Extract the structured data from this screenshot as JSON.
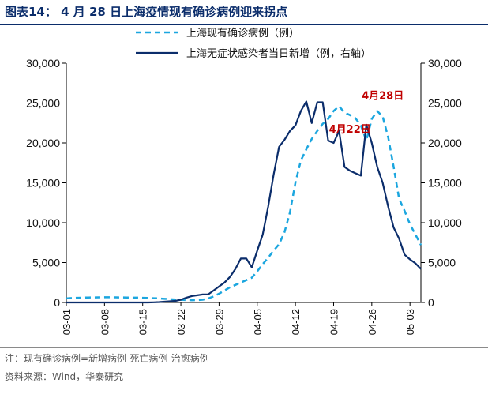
{
  "title": "图表14：  4 月 28 日上海疫情现有确诊病例迎来拐点",
  "footnote": "注：现有确诊病例=新增病例-死亡病例-治愈病例",
  "source": "资料来源：Wind，华泰研究",
  "colors": {
    "dashed": "#1ba6df",
    "solid": "#0b2d6b",
    "annotation": "#c00000",
    "axis": "#000000"
  },
  "chart_data": {
    "type": "line",
    "start_date": "2022-03-01",
    "x_tick_labels": [
      "03-01",
      "03-08",
      "03-15",
      "03-22",
      "03-29",
      "04-05",
      "04-12",
      "04-19",
      "04-26",
      "05-03"
    ],
    "ylim_left": [
      0,
      30000
    ],
    "ylim_right": [
      0,
      30000
    ],
    "y_tick_labels_left": [
      "0",
      "5,000",
      "10,000",
      "15,000",
      "20,000",
      "25,000",
      "30,000"
    ],
    "y_tick_labels_right": [
      "0",
      "5,000",
      "10,000",
      "15,000",
      "20,000",
      "25,000",
      "30,000"
    ],
    "legend_placement": "top-right",
    "grid": false,
    "series": [
      {
        "name": "上海现有确诊病例（例）",
        "style": "dashed",
        "axis": "left",
        "values": [
          500,
          550,
          580,
          600,
          620,
          630,
          640,
          650,
          650,
          640,
          630,
          620,
          610,
          600,
          580,
          560,
          530,
          500,
          460,
          420,
          380,
          340,
          300,
          290,
          300,
          350,
          500,
          750,
          1100,
          1500,
          1900,
          2200,
          2500,
          2800,
          3100,
          3900,
          4800,
          5600,
          6500,
          7300,
          8800,
          11300,
          15000,
          17800,
          19200,
          20500,
          21500,
          22400,
          23000,
          24000,
          24600,
          23800,
          23500,
          23100,
          22200,
          20300,
          23000,
          24000,
          23300,
          20700,
          17000,
          13000,
          11500,
          9800,
          8500,
          7200
        ]
      },
      {
        "name": "上海无症状感染者当日新增（例，右轴）",
        "style": "solid",
        "axis": "right",
        "values": [
          0,
          0,
          0,
          0,
          0,
          0,
          0,
          0,
          0,
          0,
          0,
          0,
          0,
          0,
          0,
          0,
          20,
          50,
          100,
          150,
          200,
          350,
          600,
          800,
          900,
          1000,
          1000,
          1500,
          2000,
          2500,
          3200,
          4200,
          5500,
          5500,
          4400,
          6500,
          8500,
          12000,
          16000,
          19500,
          20400,
          21500,
          22200,
          24000,
          25200,
          22500,
          25100,
          25100,
          20300,
          20000,
          21500,
          17000,
          16500,
          16200,
          15900,
          22300,
          20000,
          17000,
          15000,
          12000,
          9400,
          8000,
          6000,
          5400,
          4900,
          4200
        ]
      }
    ],
    "annotations": [
      {
        "text": "4月22日",
        "x_index": 52,
        "y": 20500
      },
      {
        "text": "4月28日",
        "x_index": 58,
        "y": 24700
      }
    ]
  }
}
